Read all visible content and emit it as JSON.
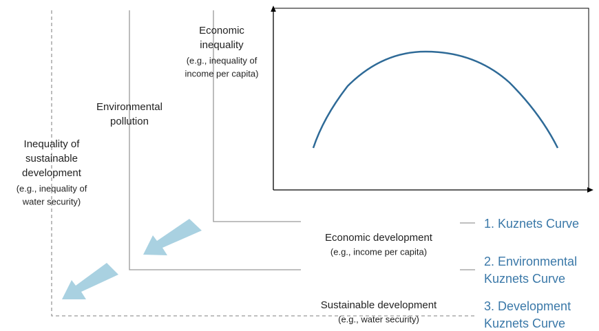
{
  "y_axis_labels": [
    {
      "title": [
        "Economic",
        "inequality"
      ],
      "example": [
        "(e.g., inequality of",
        "income per capita)"
      ]
    },
    {
      "title": [
        "Environmental",
        "pollution"
      ],
      "example": []
    },
    {
      "title": [
        "Inequality of",
        "sustainable",
        "development"
      ],
      "example": [
        "(e.g., inequality of",
        "water security)"
      ]
    }
  ],
  "x_axis_labels": [
    {
      "title": [
        "Economic development"
      ],
      "example": [
        "(e.g., income per capita)"
      ]
    },
    {
      "title": [
        "Sustainable development"
      ],
      "example": [
        "(e.g., water security)"
      ]
    }
  ],
  "curves": [
    [
      "1. Kuznets Curve"
    ],
    [
      "2. Environmental",
      "Kuznets Curve"
    ],
    [
      "3. Development",
      "Kuznets Curve"
    ]
  ]
}
